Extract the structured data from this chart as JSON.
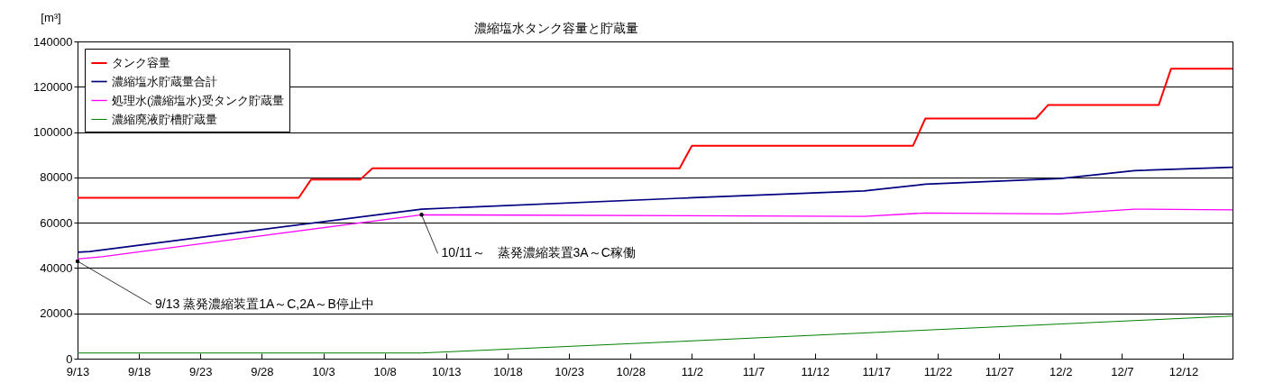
{
  "chart_data": {
    "type": "line",
    "title": "濃縮塩水タンク容量と貯蔵量",
    "ylabel": "[m³]",
    "xlim": [
      "--09-13",
      "--12-16"
    ],
    "xticks": [
      {
        "value": "--09-13",
        "label": "9/13"
      },
      {
        "value": "--09-18",
        "label": "9/18"
      },
      {
        "value": "--09-23",
        "label": "9/23"
      },
      {
        "value": "--09-28",
        "label": "9/28"
      },
      {
        "value": "--10-03",
        "label": "10/3"
      },
      {
        "value": "--10-08",
        "label": "10/8"
      },
      {
        "value": "--10-13",
        "label": "10/13"
      },
      {
        "value": "--10-18",
        "label": "10/18"
      },
      {
        "value": "--10-23",
        "label": "10/23"
      },
      {
        "value": "--10-28",
        "label": "10/28"
      },
      {
        "value": "--11-02",
        "label": "11/2"
      },
      {
        "value": "--11-07",
        "label": "11/7"
      },
      {
        "value": "--11-12",
        "label": "11/12"
      },
      {
        "value": "--11-17",
        "label": "11/17"
      },
      {
        "value": "--11-22",
        "label": "11/22"
      },
      {
        "value": "--11-27",
        "label": "11/27"
      },
      {
        "value": "--12-02",
        "label": "12/2"
      },
      {
        "value": "--12-07",
        "label": "12/7"
      },
      {
        "value": "--12-12",
        "label": "12/12"
      }
    ],
    "ylim": [
      0,
      140000
    ],
    "yticks": [
      0,
      20000,
      40000,
      60000,
      80000,
      100000,
      120000,
      140000
    ],
    "grid": "y",
    "legend": "top left",
    "line_style": "solid",
    "marker": "none",
    "series": [
      {
        "name": "タンク容量",
        "color": "#ff0000",
        "x": [
          "--09-13",
          "--10-01",
          "--10-02",
          "--10-06",
          "--10-07",
          "--11-01",
          "--11-02",
          "--11-20",
          "--11-21",
          "--11-30",
          "--12-01",
          "--12-10",
          "--12-11",
          "--12-16"
        ],
        "values": [
          71000,
          71000,
          79000,
          79000,
          84000,
          84000,
          94000,
          94000,
          106000,
          106000,
          112000,
          112000,
          128000,
          128000
        ]
      },
      {
        "name": "濃縮塩水貯蔵量合計",
        "color": "#000080",
        "x": [
          "--09-13",
          "--09-14",
          "--10-11",
          "--11-01",
          "--11-16",
          "--11-21",
          "--12-02",
          "--12-08",
          "--12-16"
        ],
        "values": [
          47000,
          47300,
          66000,
          70800,
          74000,
          77000,
          79500,
          83000,
          84500
        ]
      },
      {
        "name": "処理水(濃縮塩水)受タンク貯蔵量",
        "color": "#ff00ff",
        "x": [
          "--09-13",
          "--09-15",
          "--10-11",
          "--11-16",
          "--11-21",
          "--12-02",
          "--12-08",
          "--12-16"
        ],
        "values": [
          44000,
          45000,
          63500,
          62800,
          64300,
          63900,
          66000,
          65700
        ]
      },
      {
        "name": "濃縮廃液貯槽貯蔵量",
        "color": "#008000",
        "x": [
          "--09-13",
          "--10-11",
          "--11-01",
          "--11-17",
          "--12-02",
          "--12-16"
        ],
        "values": [
          2500,
          2500,
          7600,
          11600,
          15300,
          18800
        ]
      }
    ],
    "annotations": [
      {
        "text": "9/13  蒸発濃縮装置1A～C,2A～B停止中",
        "x": "--09-13",
        "y": 43000
      },
      {
        "text": "10/11～　蒸発濃縮装置3A～C稼働",
        "x": "--10-11",
        "y": 63500
      }
    ]
  }
}
